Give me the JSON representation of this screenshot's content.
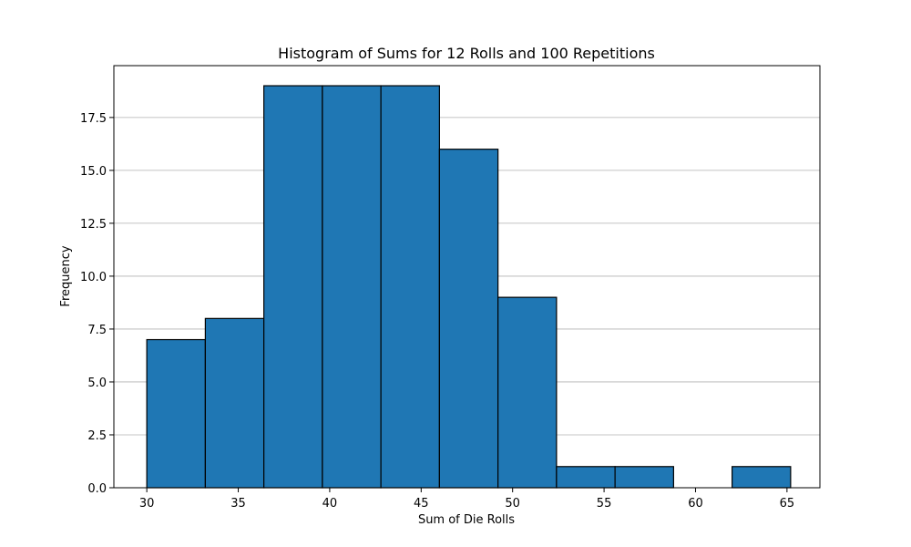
{
  "chart_data": {
    "type": "histogram",
    "title": "Histogram of Sums for 12 Rolls and 100 Repetitions",
    "xlabel": "Sum of Die Rolls",
    "ylabel": "Frequency",
    "bin_edges": [
      30.0,
      33.2,
      36.4,
      39.6,
      42.8,
      46.0,
      49.2,
      52.4,
      55.6,
      58.8,
      62.0,
      65.2
    ],
    "counts": [
      7,
      8,
      19,
      19,
      19,
      16,
      9,
      1,
      1,
      0,
      1
    ],
    "xlim": [
      28.2,
      66.8
    ],
    "ylim": [
      0,
      19.95
    ],
    "x_ticks": [
      30,
      35,
      40,
      45,
      50,
      55,
      60,
      65
    ],
    "y_ticks": [
      0,
      2.5,
      5,
      7.5,
      10,
      12.5,
      15,
      17.5
    ],
    "x_tick_labels": [
      "30",
      "35",
      "40",
      "45",
      "50",
      "55",
      "60",
      "65"
    ],
    "y_tick_labels": [
      "0.0",
      "2.5",
      "5.0",
      "7.5",
      "10.0",
      "12.5",
      "15.0",
      "17.5"
    ],
    "grid": "y",
    "bar_color": "#1f77b4",
    "edge_color": "#000000",
    "grid_color": "#b0b0b0"
  }
}
